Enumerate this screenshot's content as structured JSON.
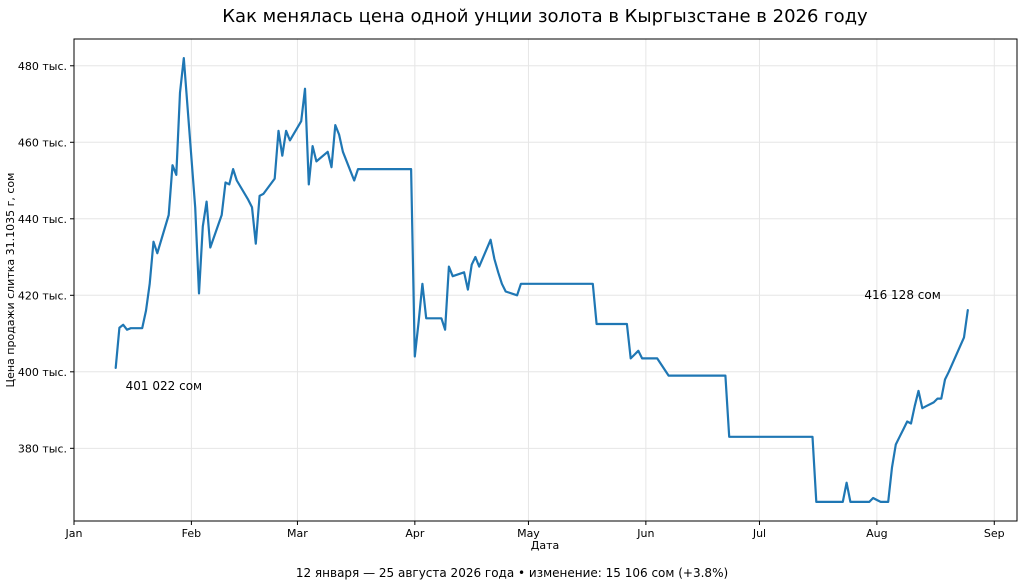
{
  "chart_data": {
    "type": "line",
    "title": "Как менялась цена одной унции золота в Кыргызстане в 2026 году",
    "xlabel": "Дата",
    "ylabel": "Цена продажи слитка 31.1035 г, сом",
    "footer": "12 января — 25 августа 2026 года • изменение: 15 106 сом (+3.8%)",
    "grid": true,
    "color": "#1f77b4",
    "xlim": [
      "2026-01-01",
      "2026-09-07"
    ],
    "ylim": [
      361000,
      487000
    ],
    "x_ticks": [
      {
        "date": "2026-01-01",
        "label": "Jan"
      },
      {
        "date": "2026-02-01",
        "label": "Feb"
      },
      {
        "date": "2026-03-01",
        "label": "Mar"
      },
      {
        "date": "2026-04-01",
        "label": "Apr"
      },
      {
        "date": "2026-05-01",
        "label": "May"
      },
      {
        "date": "2026-06-01",
        "label": "Jun"
      },
      {
        "date": "2026-07-01",
        "label": "Jul"
      },
      {
        "date": "2026-08-01",
        "label": "Aug"
      },
      {
        "date": "2026-09-01",
        "label": "Sep"
      }
    ],
    "y_ticks": [
      {
        "value": 380000,
        "label": "380 тыс."
      },
      {
        "value": 400000,
        "label": "400 тыс."
      },
      {
        "value": 420000,
        "label": "420 тыс."
      },
      {
        "value": 440000,
        "label": "440 тыс."
      },
      {
        "value": 460000,
        "label": "460 тыс."
      },
      {
        "value": 480000,
        "label": "480 тыс."
      }
    ],
    "annotations": [
      {
        "text": "401 022 сом",
        "date": "2026-01-12",
        "value": 401022
      },
      {
        "text": "416 128 сом",
        "date": "2026-08-25",
        "value": 416128
      }
    ],
    "series": [
      {
        "points": [
          [
            "2026-01-12",
            401022
          ],
          [
            "2026-01-13",
            411500
          ],
          [
            "2026-01-14",
            412300
          ],
          [
            "2026-01-15",
            411000
          ],
          [
            "2026-01-16",
            411400
          ],
          [
            "2026-01-19",
            411400
          ],
          [
            "2026-01-20",
            416000
          ],
          [
            "2026-01-21",
            423000
          ],
          [
            "2026-01-22",
            434000
          ],
          [
            "2026-01-23",
            431000
          ],
          [
            "2026-01-26",
            441000
          ],
          [
            "2026-01-27",
            454000
          ],
          [
            "2026-01-28",
            451500
          ],
          [
            "2026-01-29",
            473000
          ],
          [
            "2026-01-30",
            482000
          ],
          [
            "2026-02-02",
            443000
          ],
          [
            "2026-02-03",
            420500
          ],
          [
            "2026-02-04",
            438000
          ],
          [
            "2026-02-05",
            444500
          ],
          [
            "2026-02-06",
            432500
          ],
          [
            "2026-02-09",
            441000
          ],
          [
            "2026-02-10",
            449500
          ],
          [
            "2026-02-11",
            449000
          ],
          [
            "2026-02-12",
            453000
          ],
          [
            "2026-02-13",
            450000
          ],
          [
            "2026-02-16",
            445000
          ],
          [
            "2026-02-17",
            443000
          ],
          [
            "2026-02-18",
            433500
          ],
          [
            "2026-02-19",
            446000
          ],
          [
            "2026-02-20",
            446500
          ],
          [
            "2026-02-23",
            450500
          ],
          [
            "2026-02-24",
            463000
          ],
          [
            "2026-02-25",
            456500
          ],
          [
            "2026-02-26",
            463000
          ],
          [
            "2026-02-27",
            460500
          ],
          [
            "2026-03-02",
            465500
          ],
          [
            "2026-03-03",
            474000
          ],
          [
            "2026-03-04",
            449000
          ],
          [
            "2026-03-05",
            459000
          ],
          [
            "2026-03-06",
            455000
          ],
          [
            "2026-03-09",
            457500
          ],
          [
            "2026-03-10",
            453500
          ],
          [
            "2026-03-11",
            464500
          ],
          [
            "2026-03-12",
            462000
          ],
          [
            "2026-03-13",
            457500
          ],
          [
            "2026-03-16",
            450000
          ],
          [
            "2026-03-17",
            453000
          ],
          [
            "2026-03-31",
            453000
          ],
          [
            "2026-04-01",
            404000
          ],
          [
            "2026-04-02",
            413000
          ],
          [
            "2026-04-03",
            423000
          ],
          [
            "2026-04-04",
            414000
          ],
          [
            "2026-04-08",
            414000
          ],
          [
            "2026-04-09",
            411000
          ],
          [
            "2026-04-10",
            427500
          ],
          [
            "2026-04-11",
            425000
          ],
          [
            "2026-04-14",
            426000
          ],
          [
            "2026-04-15",
            421500
          ],
          [
            "2026-04-16",
            428000
          ],
          [
            "2026-04-17",
            430000
          ],
          [
            "2026-04-18",
            427500
          ],
          [
            "2026-04-21",
            434500
          ],
          [
            "2026-04-22",
            429500
          ],
          [
            "2026-04-23",
            426000
          ],
          [
            "2026-04-24",
            423000
          ],
          [
            "2026-04-25",
            421000
          ],
          [
            "2026-04-28",
            420000
          ],
          [
            "2026-04-29",
            423000
          ],
          [
            "2026-05-18",
            423000
          ],
          [
            "2026-05-19",
            412500
          ],
          [
            "2026-05-27",
            412500
          ],
          [
            "2026-05-28",
            403500
          ],
          [
            "2026-05-29",
            404500
          ],
          [
            "2026-05-30",
            405500
          ],
          [
            "2026-05-31",
            403500
          ],
          [
            "2026-06-04",
            403500
          ],
          [
            "2026-06-07",
            399000
          ],
          [
            "2026-06-22",
            399000
          ],
          [
            "2026-06-23",
            383000
          ],
          [
            "2026-07-15",
            383000
          ],
          [
            "2026-07-16",
            366000
          ],
          [
            "2026-07-23",
            366000
          ],
          [
            "2026-07-24",
            371000
          ],
          [
            "2026-07-25",
            366000
          ],
          [
            "2026-07-30",
            366000
          ],
          [
            "2026-07-31",
            367000
          ],
          [
            "2026-08-01",
            366500
          ],
          [
            "2026-08-02",
            366000
          ],
          [
            "2026-08-04",
            366000
          ],
          [
            "2026-08-05",
            375000
          ],
          [
            "2026-08-06",
            381000
          ],
          [
            "2026-08-07",
            383000
          ],
          [
            "2026-08-08",
            385000
          ],
          [
            "2026-08-09",
            387000
          ],
          [
            "2026-08-10",
            386500
          ],
          [
            "2026-08-11",
            391000
          ],
          [
            "2026-08-12",
            395000
          ],
          [
            "2026-08-13",
            390500
          ],
          [
            "2026-08-14",
            391000
          ],
          [
            "2026-08-16",
            392000
          ],
          [
            "2026-08-17",
            393000
          ],
          [
            "2026-08-18",
            393000
          ],
          [
            "2026-08-19",
            398000
          ],
          [
            "2026-08-20",
            400000
          ],
          [
            "2026-08-24",
            409000
          ],
          [
            "2026-08-25",
            416128
          ]
        ]
      }
    ]
  }
}
